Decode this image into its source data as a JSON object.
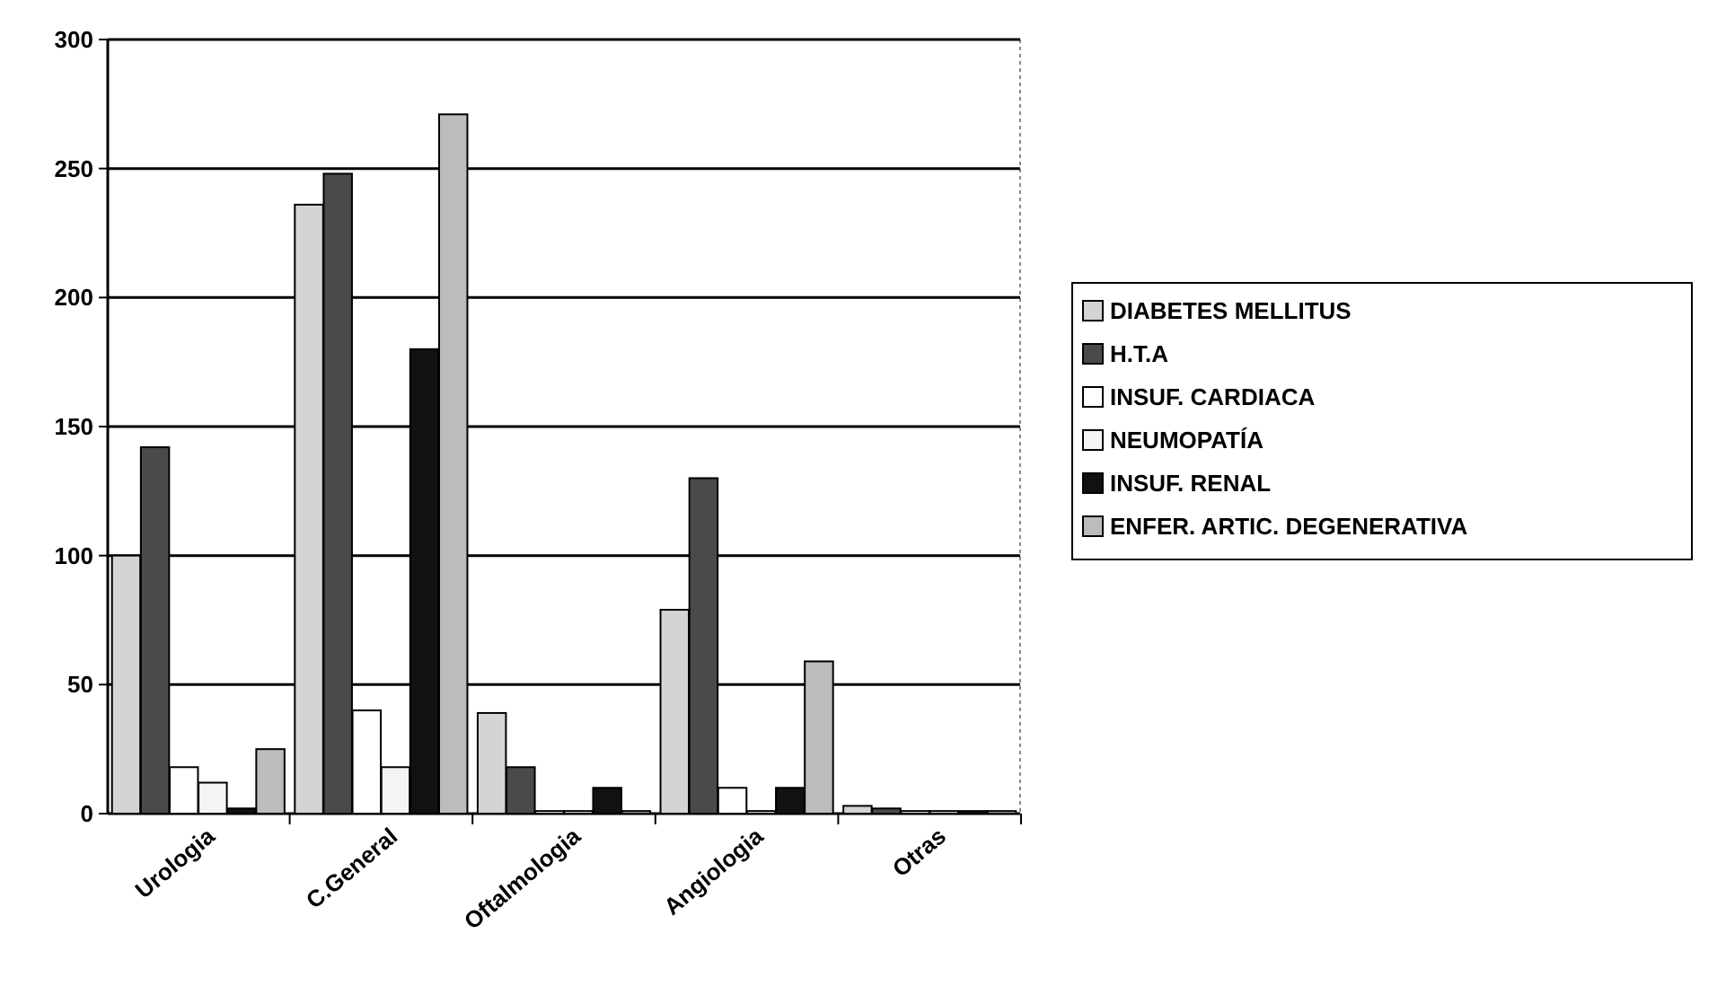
{
  "chart_data": {
    "type": "bar",
    "categories": [
      "Urologia",
      "C.General",
      "Oftalmologia",
      "Angiologia",
      "Otras"
    ],
    "series": [
      {
        "name": "DIABETES MELLITUS",
        "color": "#d4d4d4",
        "values": [
          100,
          236,
          39,
          79,
          3
        ]
      },
      {
        "name": "H.T.A",
        "color": "#4a4a4a",
        "values": [
          142,
          248,
          18,
          130,
          2
        ]
      },
      {
        "name": "INSUF. CARDIACA",
        "color": "#ffffff",
        "values": [
          18,
          40,
          1,
          10,
          1
        ]
      },
      {
        "name": "NEUMOPATÍA",
        "color": "#f4f4f4",
        "values": [
          12,
          18,
          1,
          1,
          1
        ]
      },
      {
        "name": "INSUF. RENAL",
        "color": "#111111",
        "values": [
          2,
          180,
          10,
          10,
          1
        ]
      },
      {
        "name": "ENFER. ARTIC. DEGENERATIVA",
        "color": "#bcbcbc",
        "values": [
          25,
          271,
          1,
          59,
          1
        ]
      }
    ],
    "ylim": [
      0,
      300
    ],
    "yticks": [
      0,
      50,
      100,
      150,
      200,
      250,
      300
    ],
    "grid": "y",
    "legend": "right"
  }
}
